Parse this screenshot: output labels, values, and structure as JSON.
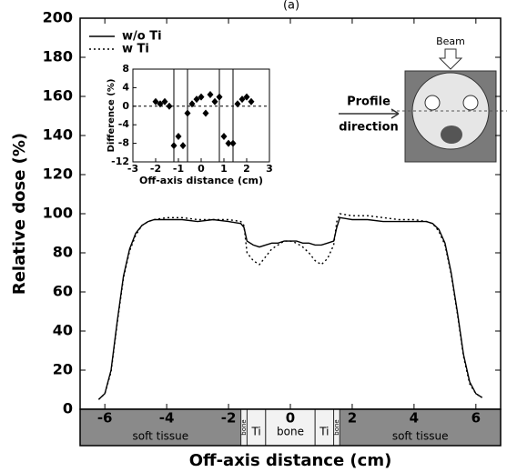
{
  "chart_data": [
    {
      "type": "line",
      "title": "(a)",
      "xlabel": "Off-axis distance (cm)",
      "ylabel": "Relative dose (%)",
      "xlim": [
        -6.8,
        6.8
      ],
      "ylim": [
        0,
        200
      ],
      "xticks": [
        -6,
        -4,
        -2,
        0,
        2,
        4,
        6
      ],
      "yticks": [
        0,
        20,
        40,
        60,
        80,
        100,
        120,
        140,
        160,
        180,
        200
      ],
      "x": [
        -6.2,
        -6.0,
        -5.8,
        -5.6,
        -5.4,
        -5.2,
        -5.0,
        -4.8,
        -4.6,
        -4.4,
        -4.0,
        -3.5,
        -3.0,
        -2.5,
        -2.0,
        -1.6,
        -1.5,
        -1.4,
        -1.2,
        -1.0,
        -0.8,
        -0.6,
        -0.4,
        -0.2,
        0,
        0.2,
        0.4,
        0.6,
        0.8,
        1.0,
        1.2,
        1.4,
        1.5,
        1.6,
        2.0,
        2.5,
        3.0,
        3.5,
        4.0,
        4.4,
        4.6,
        4.8,
        5.0,
        5.2,
        5.4,
        5.6,
        5.8,
        6.0,
        6.2
      ],
      "series": [
        {
          "name": "w/o Ti",
          "color": "#000000",
          "dash": "none",
          "values": [
            5,
            8,
            20,
            45,
            68,
            82,
            90,
            94,
            96,
            97,
            97,
            97,
            96,
            97,
            96,
            95,
            93,
            86,
            84,
            83,
            84,
            85,
            85,
            86,
            86,
            86,
            85,
            85,
            84,
            84,
            85,
            86,
            93,
            98,
            97,
            97,
            96,
            96,
            96,
            96,
            95,
            92,
            85,
            70,
            50,
            28,
            14,
            8,
            6
          ]
        },
        {
          "name": "w Ti",
          "color": "#000000",
          "dash": "2 3",
          "values": [
            5,
            8,
            19,
            44,
            67,
            81,
            89,
            94,
            96,
            97,
            98,
            98,
            97,
            97,
            97,
            96,
            94,
            80,
            76,
            74,
            78,
            82,
            84,
            86,
            86,
            85,
            83,
            80,
            76,
            74,
            77,
            84,
            96,
            100,
            99,
            99,
            98,
            97,
            97,
            96,
            95,
            91,
            84,
            69,
            49,
            27,
            13,
            8,
            6
          ]
        }
      ],
      "legend": "upper left",
      "materials": [
        {
          "label": "soft tissue",
          "start": -6.8,
          "end": -1.6
        },
        {
          "label": "bone",
          "start": -1.6,
          "end": -1.4
        },
        {
          "label": "Ti",
          "start": -1.4,
          "end": -0.8
        },
        {
          "label": "bone",
          "start": -0.8,
          "end": 0.8
        },
        {
          "label": "Ti",
          "start": 0.8,
          "end": 1.4
        },
        {
          "label": "bone",
          "start": 1.4,
          "end": 1.6
        },
        {
          "label": "soft tissue",
          "start": 1.6,
          "end": 6.8
        }
      ],
      "annotations": [
        "Beam",
        "Profile",
        "direction"
      ]
    },
    {
      "type": "scatter",
      "xlabel": "Off-axis distance (cm)",
      "ylabel": "Difference (%)",
      "xlim": [
        -3,
        3
      ],
      "ylim": [
        -12,
        8
      ],
      "xticks": [
        -3,
        -2,
        -1,
        0,
        1,
        2,
        3
      ],
      "yticks": [
        -12,
        -8,
        -4,
        0,
        4,
        8
      ],
      "vlines": [
        -1.2,
        -0.6,
        0.8,
        1.4
      ],
      "color": "#000000",
      "x": [
        -2.0,
        -1.8,
        -1.6,
        -1.4,
        -1.2,
        -1.0,
        -0.8,
        -0.6,
        -0.4,
        -0.2,
        0,
        0.2,
        0.4,
        0.6,
        0.8,
        1.0,
        1.2,
        1.4,
        1.6,
        1.8,
        2.0,
        2.2
      ],
      "values": [
        1,
        0.5,
        1,
        0,
        -8.5,
        -6.5,
        -8.5,
        -1.5,
        0.5,
        1.5,
        2,
        -1.5,
        2.5,
        1,
        2,
        -6.5,
        -8,
        -8,
        0.5,
        1.5,
        2,
        1
      ]
    }
  ]
}
